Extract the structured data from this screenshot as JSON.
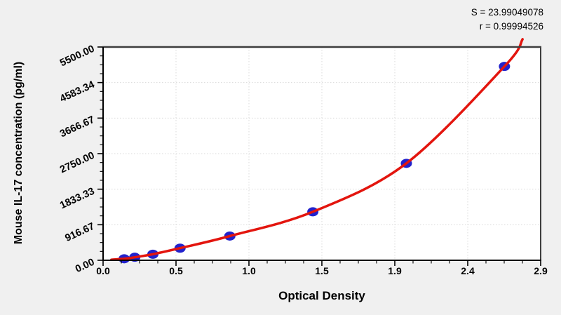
{
  "figure": {
    "background_color": "#f0f0f0",
    "plot_background_color": "#ffffff",
    "spine_dark_color": "#3e3e3e",
    "spine_black_color": "#000000",
    "grid_color": "#d9d9d9"
  },
  "stats": {
    "s_line": "S = 23.99049078",
    "r_line": "r = 0.99994526"
  },
  "chart_data": {
    "type": "scatter",
    "title": "",
    "xlabel": "Optical Density",
    "ylabel": "Mouse IL-17 concentration (pg/ml)",
    "xlim": [
      0,
      2.9
    ],
    "ylim": [
      0,
      5500
    ],
    "x_tick_labels": [
      "0.0",
      "0.5",
      "1.0",
      "1.5",
      "1.9",
      "2.4",
      "2.9"
    ],
    "y_tick_labels": [
      "0.00",
      "916.67",
      "1833.33",
      "2750.00",
      "3666.67",
      "4583.34",
      "5500.00"
    ],
    "y_tick_values": [
      0,
      916.67,
      1833.33,
      2750.0,
      3666.67,
      4583.34,
      5500.0
    ],
    "minor_tick_subdivisions": 4,
    "grid": {
      "style": "dotted",
      "at": "major-ticks",
      "color": "#d9d9d9"
    },
    "legend_position": "none",
    "series": [
      {
        "name": "standard-curve-points",
        "marker": "ellipse",
        "marker_color": "#2222cc",
        "line_color": "#e3150e",
        "points": [
          {
            "x": 0.14,
            "y": 39.06
          },
          {
            "x": 0.21,
            "y": 78.13
          },
          {
            "x": 0.33,
            "y": 156.25
          },
          {
            "x": 0.51,
            "y": 312.5
          },
          {
            "x": 0.84,
            "y": 625
          },
          {
            "x": 1.39,
            "y": 1250
          },
          {
            "x": 2.01,
            "y": 2500
          },
          {
            "x": 2.66,
            "y": 5000
          }
        ]
      }
    ],
    "curve_extension": {
      "start": {
        "x": 0.055,
        "y": 15
      },
      "end": {
        "x": 2.78,
        "y": 5700
      }
    },
    "annotations": [
      {
        "text": "S = 23.99049078",
        "position": "top-right"
      },
      {
        "text": "r = 0.99994526",
        "position": "top-right"
      }
    ]
  }
}
